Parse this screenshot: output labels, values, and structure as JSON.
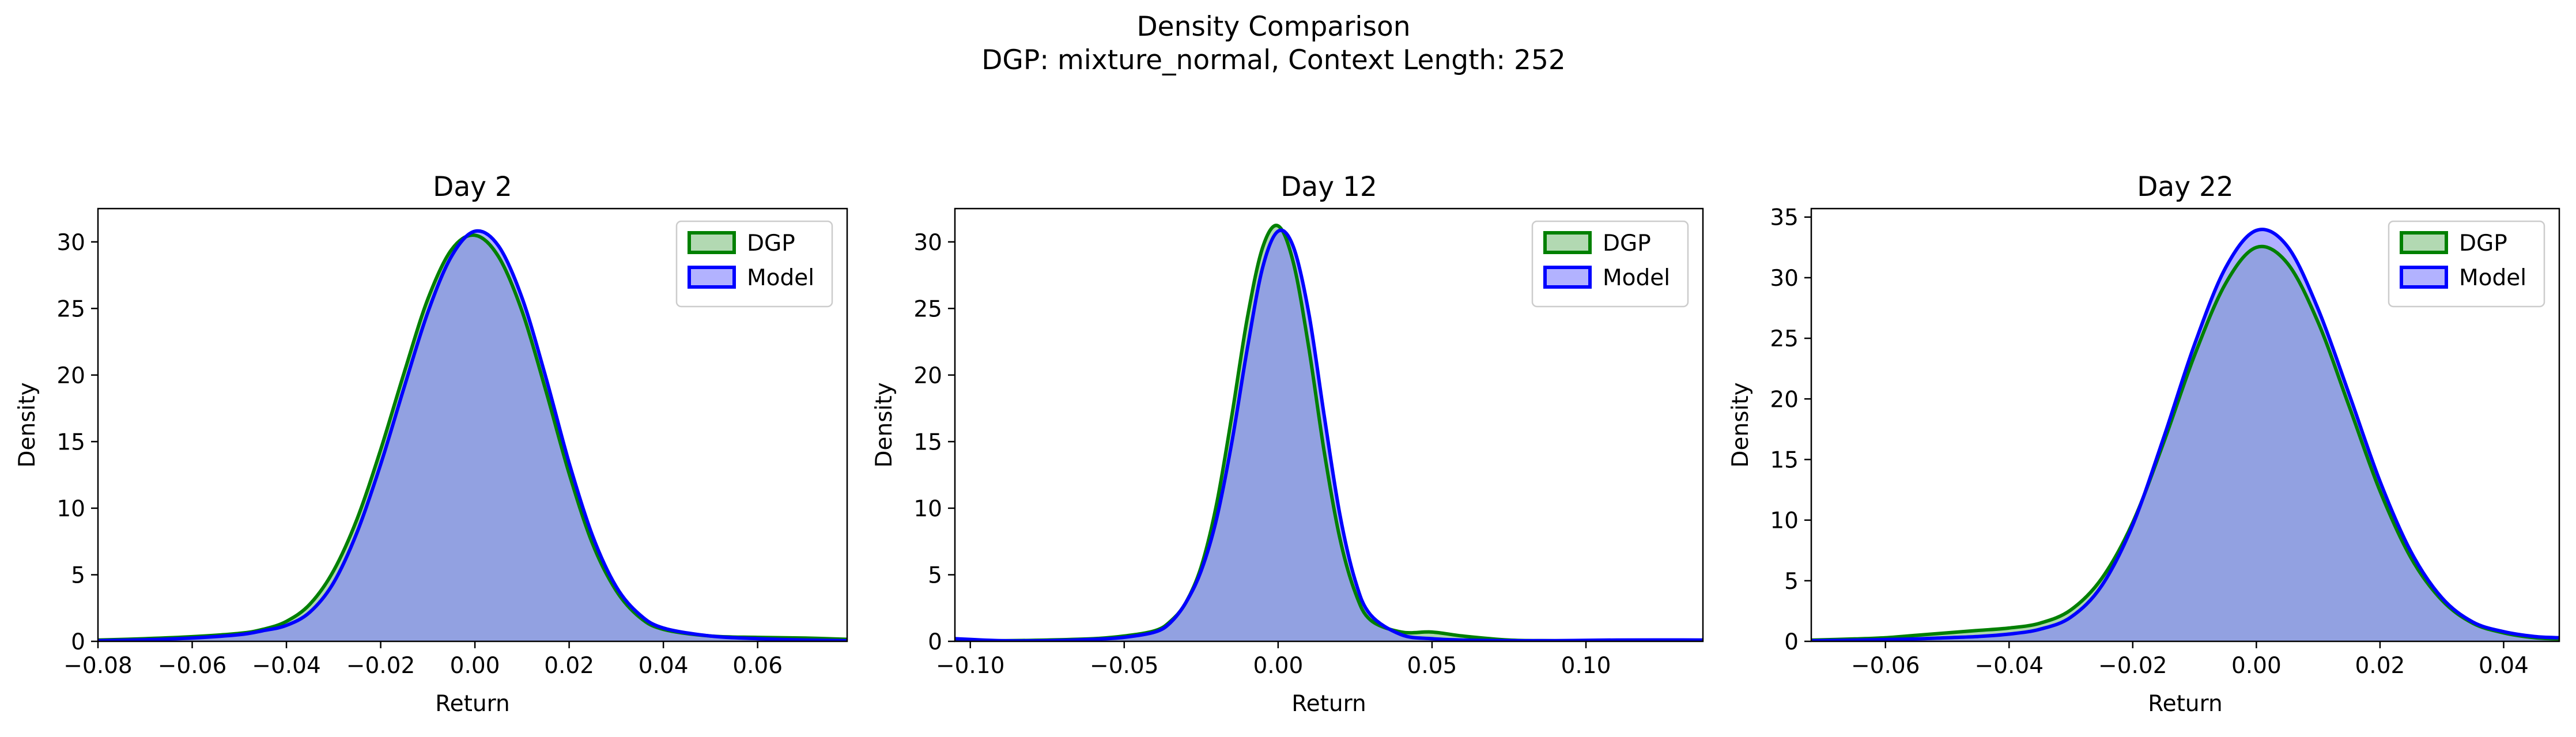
{
  "figure": {
    "title_line1": "Density Comparison",
    "title_line2": "DGP: mixture_normal, Context Length: 252"
  },
  "colors": {
    "dgp_line": "#008000",
    "dgp_fill": "#7fbf7f",
    "model_line": "#0000ff",
    "model_fill": "#7f7fff",
    "overlap_fill": "#7f9acb"
  },
  "chart_data": [
    {
      "type": "area",
      "title": "Day 2",
      "xlabel": "Return",
      "ylabel": "Density",
      "xlim": [
        -0.08,
        0.079
      ],
      "ylim": [
        0,
        32.5
      ],
      "xticks": [
        -0.08,
        -0.06,
        -0.04,
        -0.02,
        0.0,
        0.02,
        0.04,
        0.06
      ],
      "xtick_labels": [
        "−0.08",
        "−0.06",
        "−0.04",
        "−0.02",
        "0.00",
        "0.02",
        "0.04",
        "0.06"
      ],
      "yticks": [
        0,
        5,
        10,
        15,
        20,
        25,
        30
      ],
      "ytick_labels": [
        "0",
        "5",
        "10",
        "15",
        "20",
        "25",
        "30"
      ],
      "legend": "top-right",
      "series": [
        {
          "name": "DGP",
          "x": [
            -0.08,
            -0.07,
            -0.06,
            -0.05,
            -0.045,
            -0.04,
            -0.035,
            -0.03,
            -0.025,
            -0.02,
            -0.015,
            -0.01,
            -0.005,
            0.0,
            0.005,
            0.01,
            0.015,
            0.02,
            0.025,
            0.03,
            0.035,
            0.04,
            0.05,
            0.06,
            0.07,
            0.079
          ],
          "y": [
            0.1,
            0.2,
            0.35,
            0.6,
            0.9,
            1.5,
            2.8,
            5.3,
            9.2,
            14.4,
            20.2,
            25.7,
            29.4,
            30.5,
            28.9,
            24.8,
            18.9,
            12.6,
            7.3,
            3.8,
            1.8,
            0.9,
            0.4,
            0.3,
            0.25,
            0.15
          ]
        },
        {
          "name": "Model",
          "x": [
            -0.08,
            -0.07,
            -0.06,
            -0.05,
            -0.045,
            -0.04,
            -0.035,
            -0.03,
            -0.025,
            -0.02,
            -0.015,
            -0.01,
            -0.005,
            0.0,
            0.005,
            0.01,
            0.015,
            0.02,
            0.025,
            0.03,
            0.035,
            0.04,
            0.05,
            0.06,
            0.07,
            0.079
          ],
          "y": [
            0.05,
            0.12,
            0.25,
            0.5,
            0.8,
            1.2,
            2.2,
            4.4,
            8.2,
            13.3,
            19.1,
            24.7,
            28.9,
            30.8,
            29.7,
            25.8,
            19.9,
            13.4,
            7.9,
            4.1,
            2.0,
            1.0,
            0.4,
            0.2,
            0.1,
            0.05
          ]
        }
      ]
    },
    {
      "type": "area",
      "title": "Day 12",
      "xlabel": "Return",
      "ylabel": "Density",
      "xlim": [
        -0.105,
        0.138
      ],
      "ylim": [
        0,
        32.5
      ],
      "xticks": [
        -0.1,
        -0.05,
        0.0,
        0.05,
        0.1
      ],
      "xtick_labels": [
        "−0.10",
        "−0.05",
        "0.00",
        "0.05",
        "0.10"
      ],
      "yticks": [
        0,
        5,
        10,
        15,
        20,
        25,
        30
      ],
      "ytick_labels": [
        "0",
        "5",
        "10",
        "15",
        "20",
        "25",
        "30"
      ],
      "legend": "top-right",
      "series": [
        {
          "name": "DGP",
          "x": [
            -0.105,
            -0.09,
            -0.075,
            -0.06,
            -0.05,
            -0.04,
            -0.035,
            -0.03,
            -0.025,
            -0.02,
            -0.015,
            -0.01,
            -0.005,
            0.0,
            0.005,
            0.01,
            0.015,
            0.02,
            0.025,
            0.03,
            0.04,
            0.05,
            0.06,
            0.075,
            0.09,
            0.11,
            0.138
          ],
          "y": [
            0.1,
            0.05,
            0.1,
            0.2,
            0.4,
            0.8,
            1.5,
            2.9,
            5.6,
            10.3,
            17.0,
            24.3,
            29.6,
            31.2,
            28.4,
            22.0,
            14.2,
            7.8,
            3.7,
            1.6,
            0.7,
            0.7,
            0.4,
            0.1,
            0.05,
            0.05,
            0.05
          ]
        },
        {
          "name": "Model",
          "x": [
            -0.105,
            -0.09,
            -0.075,
            -0.06,
            -0.05,
            -0.04,
            -0.035,
            -0.03,
            -0.025,
            -0.02,
            -0.015,
            -0.01,
            -0.005,
            0.0,
            0.005,
            0.01,
            0.015,
            0.02,
            0.025,
            0.03,
            0.04,
            0.05,
            0.06,
            0.075,
            0.09,
            0.11,
            0.138
          ],
          "y": [
            0.2,
            0.05,
            0.05,
            0.15,
            0.3,
            0.7,
            1.4,
            2.9,
            5.3,
            9.2,
            15.0,
            22.0,
            28.1,
            30.8,
            29.6,
            24.6,
            16.9,
            9.6,
            4.6,
            2.0,
            0.5,
            0.2,
            0.1,
            0.05,
            0.05,
            0.1,
            0.1
          ]
        }
      ]
    },
    {
      "type": "area",
      "title": "Day 22",
      "xlabel": "Return",
      "ylabel": "Density",
      "xlim": [
        -0.072,
        0.049
      ],
      "ylim": [
        0,
        35.7
      ],
      "xticks": [
        -0.06,
        -0.04,
        -0.02,
        0.0,
        0.02,
        0.04
      ],
      "xtick_labels": [
        "−0.06",
        "−0.04",
        "−0.02",
        "0.00",
        "0.02",
        "0.04"
      ],
      "yticks": [
        0,
        5,
        10,
        15,
        20,
        25,
        30,
        35
      ],
      "ytick_labels": [
        "0",
        "5",
        "10",
        "15",
        "20",
        "25",
        "30",
        "35"
      ],
      "legend": "top-right",
      "series": [
        {
          "name": "DGP",
          "x": [
            -0.072,
            -0.065,
            -0.06,
            -0.055,
            -0.05,
            -0.045,
            -0.04,
            -0.035,
            -0.03,
            -0.025,
            -0.02,
            -0.015,
            -0.01,
            -0.005,
            0.0,
            0.005,
            0.01,
            0.015,
            0.02,
            0.025,
            0.03,
            0.035,
            0.04,
            0.045,
            0.049
          ],
          "y": [
            0.1,
            0.2,
            0.3,
            0.5,
            0.7,
            0.9,
            1.1,
            1.5,
            2.6,
            5.2,
            9.8,
            16.4,
            23.6,
            29.5,
            32.5,
            31.2,
            26.3,
            19.4,
            12.4,
            6.9,
            3.4,
            1.5,
            0.7,
            0.3,
            0.2
          ]
        },
        {
          "name": "Model",
          "x": [
            -0.072,
            -0.065,
            -0.06,
            -0.055,
            -0.05,
            -0.045,
            -0.04,
            -0.035,
            -0.03,
            -0.025,
            -0.02,
            -0.015,
            -0.01,
            -0.005,
            0.0,
            0.005,
            0.01,
            0.015,
            0.02,
            0.025,
            0.03,
            0.035,
            0.04,
            0.045,
            0.049
          ],
          "y": [
            0.05,
            0.1,
            0.15,
            0.2,
            0.3,
            0.4,
            0.6,
            1.0,
            2.0,
            4.6,
            9.6,
            16.8,
            24.5,
            30.8,
            33.9,
            32.6,
            27.4,
            20.4,
            13.2,
            7.4,
            3.6,
            1.6,
            0.8,
            0.4,
            0.3
          ]
        }
      ]
    }
  ]
}
